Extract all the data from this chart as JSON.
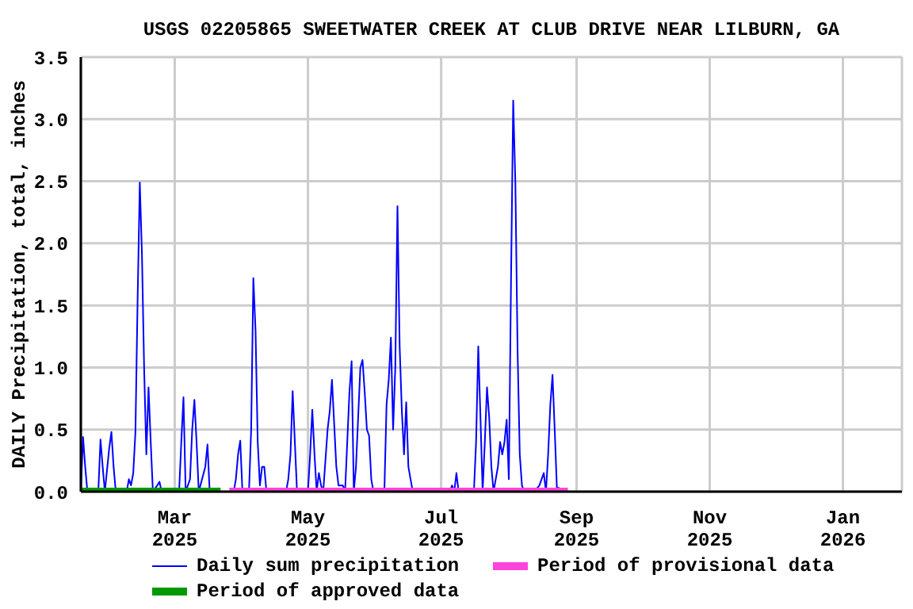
{
  "chart_data": {
    "type": "line",
    "title": "USGS 02205865 SWEETWATER CREEK AT CLUB DRIVE NEAR LILBURN, GA",
    "ylabel": "DAILY Precipitation, total, inches",
    "xlim": [
      "2025-01-17",
      "2026-01-28"
    ],
    "xticks": [
      {
        "value": "2025-03-01",
        "label": "Mar 2025"
      },
      {
        "value": "2025-05-01",
        "label": "May 2025"
      },
      {
        "value": "2025-07-01",
        "label": "Jul 2025"
      },
      {
        "value": "2025-09-01",
        "label": "Sep 2025"
      },
      {
        "value": "2025-11-01",
        "label": "Nov 2025"
      },
      {
        "value": "2026-01-01",
        "label": "Jan 2026"
      }
    ],
    "ylim": [
      0,
      3.5
    ],
    "yticks": [
      {
        "value": 0,
        "label": "0.0"
      },
      {
        "value": 0.5,
        "label": "0.5"
      },
      {
        "value": 1,
        "label": "1.0"
      },
      {
        "value": 1.5,
        "label": "1.5"
      },
      {
        "value": 2,
        "label": "2.0"
      },
      {
        "value": 2.5,
        "label": "2.5"
      },
      {
        "value": 3,
        "label": "3.0"
      },
      {
        "value": 3.5,
        "label": "3.5"
      }
    ],
    "grid": true,
    "legend": "bottom",
    "series": [
      {
        "name": "Daily sum precipitation",
        "color": "#0000ff",
        "x": [
          "2025-01-17",
          "2025-01-18",
          "2025-01-19",
          "2025-01-20",
          "2025-01-25",
          "2025-01-26",
          "2025-01-27",
          "2025-01-28",
          "2025-01-30",
          "2025-01-31",
          "2025-02-01",
          "2025-02-02",
          "2025-02-07",
          "2025-02-08",
          "2025-02-09",
          "2025-02-10",
          "2025-02-11",
          "2025-02-12",
          "2025-02-13",
          "2025-02-14",
          "2025-02-15",
          "2025-02-16",
          "2025-02-17",
          "2025-02-18",
          "2025-02-19",
          "2025-02-21",
          "2025-02-22",
          "2025-02-23",
          "2025-03-03",
          "2025-03-04",
          "2025-03-05",
          "2025-03-06",
          "2025-03-08",
          "2025-03-09",
          "2025-03-10",
          "2025-03-11",
          "2025-03-12",
          "2025-03-15",
          "2025-03-16",
          "2025-03-17",
          "2025-03-28",
          "2025-03-29",
          "2025-03-30",
          "2025-03-31",
          "2025-04-01",
          "2025-04-04",
          "2025-04-05",
          "2025-04-06",
          "2025-04-07",
          "2025-04-08",
          "2025-04-09",
          "2025-04-10",
          "2025-04-11",
          "2025-04-12",
          "2025-04-21",
          "2025-04-22",
          "2025-04-23",
          "2025-04-24",
          "2025-04-25",
          "2025-04-26",
          "2025-05-01",
          "2025-05-02",
          "2025-05-03",
          "2025-05-04",
          "2025-05-05",
          "2025-05-06",
          "2025-05-07",
          "2025-05-08",
          "2025-05-10",
          "2025-05-11",
          "2025-05-12",
          "2025-05-13",
          "2025-05-14",
          "2025-05-15",
          "2025-05-17",
          "2025-05-18",
          "2025-05-19",
          "2025-05-20",
          "2025-05-21",
          "2025-05-22",
          "2025-05-23",
          "2025-05-25",
          "2025-05-26",
          "2025-05-27",
          "2025-05-28",
          "2025-05-29",
          "2025-05-30",
          "2025-05-31",
          "2025-06-05",
          "2025-06-06",
          "2025-06-07",
          "2025-06-08",
          "2025-06-09",
          "2025-06-10",
          "2025-06-11",
          "2025-06-12",
          "2025-06-13",
          "2025-06-14",
          "2025-06-15",
          "2025-06-16",
          "2025-06-17",
          "2025-06-18",
          "2025-07-05",
          "2025-07-06",
          "2025-07-07",
          "2025-07-08",
          "2025-07-09",
          "2025-07-16",
          "2025-07-17",
          "2025-07-18",
          "2025-07-19",
          "2025-07-20",
          "2025-07-21",
          "2025-07-22",
          "2025-07-23",
          "2025-07-24",
          "2025-07-25",
          "2025-07-27",
          "2025-07-28",
          "2025-07-29",
          "2025-07-30",
          "2025-07-31",
          "2025-08-01",
          "2025-08-02",
          "2025-08-03",
          "2025-08-04",
          "2025-08-05",
          "2025-08-06",
          "2025-08-07",
          "2025-08-08",
          "2025-08-13",
          "2025-08-14",
          "2025-08-15",
          "2025-08-16",
          "2025-08-17",
          "2025-08-18",
          "2025-08-19",
          "2025-08-20",
          "2025-08-21",
          "2025-08-22",
          "2025-08-23",
          "2025-08-24",
          "2025-08-25"
        ],
        "values": [
          0,
          0.44,
          0.2,
          0,
          0,
          0.42,
          0.2,
          0,
          0.35,
          0.48,
          0.2,
          0,
          0,
          0.1,
          0.05,
          0.15,
          0.48,
          1.55,
          2.49,
          1.9,
          0.98,
          0.3,
          0.84,
          0.4,
          0,
          0.05,
          0.08,
          0,
          0,
          0.4,
          0.76,
          0,
          0.1,
          0.5,
          0.74,
          0.4,
          0,
          0.2,
          0.38,
          0,
          0,
          0.1,
          0.3,
          0.41,
          0,
          0,
          0.5,
          1.72,
          1.3,
          0.4,
          0.05,
          0.2,
          0.2,
          0,
          0,
          0.1,
          0.3,
          0.81,
          0.4,
          0,
          0,
          0.3,
          0.66,
          0.3,
          0,
          0.15,
          0.05,
          0,
          0.5,
          0.65,
          0.9,
          0.55,
          0.2,
          0.05,
          0.05,
          0,
          0.4,
          0.8,
          1.05,
          0,
          0.2,
          1.0,
          1.06,
          0.8,
          0.5,
          0.45,
          0.1,
          0,
          0,
          0.7,
          0.9,
          1.24,
          0.5,
          1.0,
          2.3,
          1.17,
          0.65,
          0.3,
          0.72,
          0.2,
          0.1,
          0,
          0,
          0.05,
          0,
          0.15,
          0,
          0,
          0.4,
          1.17,
          0.6,
          0,
          0.4,
          0.84,
          0.6,
          0.2,
          0,
          0.2,
          0.4,
          0.3,
          0.4,
          0.58,
          0.1,
          1.7,
          3.15,
          2.48,
          1.14,
          0.3,
          0.05,
          0,
          0,
          0.03,
          0.05,
          0.1,
          0.15,
          0,
          0.3,
          0.7,
          0.94,
          0.5,
          0.03,
          0.03,
          0
        ]
      },
      {
        "name": "Period of provisional data",
        "type": "step",
        "color": "#ff44dd",
        "x": [
          "2025-03-26",
          "2025-08-28"
        ],
        "values": [
          0,
          0
        ]
      },
      {
        "name": "Period of approved data",
        "type": "step",
        "color": "#009900",
        "x": [
          "2025-01-17",
          "2025-03-22"
        ],
        "values": [
          0,
          0
        ]
      }
    ]
  }
}
